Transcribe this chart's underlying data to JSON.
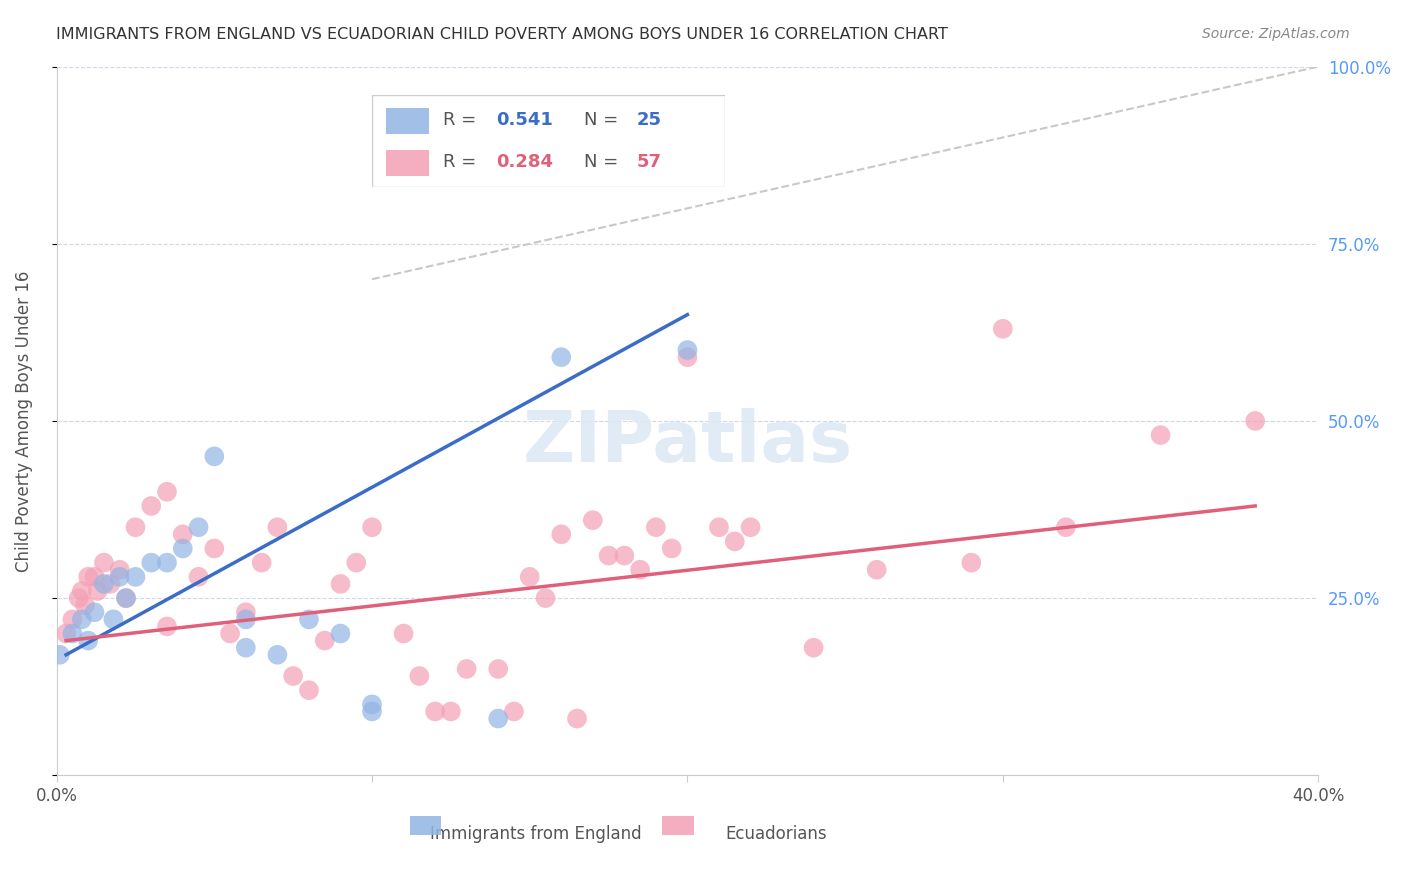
{
  "title": "IMMIGRANTS FROM ENGLAND VS ECUADORIAN CHILD POVERTY AMONG BOYS UNDER 16 CORRELATION CHART",
  "source": "Source: ZipAtlas.com",
  "xlabel": "",
  "ylabel": "Child Poverty Among Boys Under 16",
  "xlim": [
    0.0,
    0.4
  ],
  "ylim": [
    0.0,
    1.0
  ],
  "xticks": [
    0.0,
    0.1,
    0.2,
    0.3,
    0.4
  ],
  "xticklabels": [
    "0.0%",
    "",
    "",
    "",
    "40.0%"
  ],
  "yticks": [
    0.0,
    0.25,
    0.5,
    0.75,
    1.0
  ],
  "yticklabels_right": [
    "",
    "25.0%",
    "50.0%",
    "75.0%",
    "100.0%"
  ],
  "legend1_R": "0.541",
  "legend1_N": "25",
  "legend2_R": "0.284",
  "legend2_N": "57",
  "blue_color": "#92b4e3",
  "pink_color": "#f4a0b5",
  "blue_line_color": "#3a6cc8",
  "pink_line_color": "#e0607a",
  "diag_color": "#c8c8c8",
  "watermark": "ZIPatlas",
  "blue_points": [
    [
      0.005,
      0.2
    ],
    [
      0.008,
      0.22
    ],
    [
      0.01,
      0.19
    ],
    [
      0.012,
      0.23
    ],
    [
      0.015,
      0.27
    ],
    [
      0.018,
      0.22
    ],
    [
      0.02,
      0.28
    ],
    [
      0.022,
      0.25
    ],
    [
      0.025,
      0.28
    ],
    [
      0.03,
      0.3
    ],
    [
      0.035,
      0.3
    ],
    [
      0.04,
      0.32
    ],
    [
      0.045,
      0.35
    ],
    [
      0.05,
      0.45
    ],
    [
      0.06,
      0.18
    ],
    [
      0.06,
      0.22
    ],
    [
      0.07,
      0.17
    ],
    [
      0.08,
      0.22
    ],
    [
      0.09,
      0.2
    ],
    [
      0.1,
      0.1
    ],
    [
      0.1,
      0.09
    ],
    [
      0.14,
      0.08
    ],
    [
      0.16,
      0.59
    ],
    [
      0.2,
      0.6
    ],
    [
      0.001,
      0.17
    ]
  ],
  "pink_points": [
    [
      0.003,
      0.2
    ],
    [
      0.005,
      0.22
    ],
    [
      0.007,
      0.25
    ],
    [
      0.008,
      0.26
    ],
    [
      0.009,
      0.24
    ],
    [
      0.01,
      0.28
    ],
    [
      0.012,
      0.28
    ],
    [
      0.013,
      0.26
    ],
    [
      0.015,
      0.3
    ],
    [
      0.017,
      0.27
    ],
    [
      0.02,
      0.29
    ],
    [
      0.022,
      0.25
    ],
    [
      0.025,
      0.35
    ],
    [
      0.03,
      0.38
    ],
    [
      0.035,
      0.4
    ],
    [
      0.035,
      0.21
    ],
    [
      0.04,
      0.34
    ],
    [
      0.045,
      0.28
    ],
    [
      0.05,
      0.32
    ],
    [
      0.055,
      0.2
    ],
    [
      0.06,
      0.23
    ],
    [
      0.065,
      0.3
    ],
    [
      0.07,
      0.35
    ],
    [
      0.075,
      0.14
    ],
    [
      0.08,
      0.12
    ],
    [
      0.085,
      0.19
    ],
    [
      0.09,
      0.27
    ],
    [
      0.095,
      0.3
    ],
    [
      0.1,
      0.35
    ],
    [
      0.11,
      0.2
    ],
    [
      0.115,
      0.14
    ],
    [
      0.12,
      0.09
    ],
    [
      0.125,
      0.09
    ],
    [
      0.13,
      0.15
    ],
    [
      0.14,
      0.15
    ],
    [
      0.145,
      0.09
    ],
    [
      0.15,
      0.28
    ],
    [
      0.155,
      0.25
    ],
    [
      0.16,
      0.34
    ],
    [
      0.165,
      0.08
    ],
    [
      0.17,
      0.36
    ],
    [
      0.175,
      0.31
    ],
    [
      0.18,
      0.31
    ],
    [
      0.185,
      0.29
    ],
    [
      0.19,
      0.35
    ],
    [
      0.195,
      0.32
    ],
    [
      0.2,
      0.59
    ],
    [
      0.21,
      0.35
    ],
    [
      0.215,
      0.33
    ],
    [
      0.22,
      0.35
    ],
    [
      0.24,
      0.18
    ],
    [
      0.26,
      0.29
    ],
    [
      0.29,
      0.3
    ],
    [
      0.3,
      0.63
    ],
    [
      0.32,
      0.35
    ],
    [
      0.35,
      0.48
    ],
    [
      0.38,
      0.5
    ]
  ],
  "blue_line": [
    [
      0.003,
      0.17
    ],
    [
      0.2,
      0.65
    ]
  ],
  "pink_line": [
    [
      0.003,
      0.19
    ],
    [
      0.38,
      0.38
    ]
  ],
  "diag_line": [
    [
      0.1,
      0.7
    ],
    [
      0.4,
      1.0
    ]
  ],
  "background_color": "#ffffff",
  "grid_color": "#d0d8e8",
  "title_color": "#333333",
  "right_axis_color": "#5599ff"
}
